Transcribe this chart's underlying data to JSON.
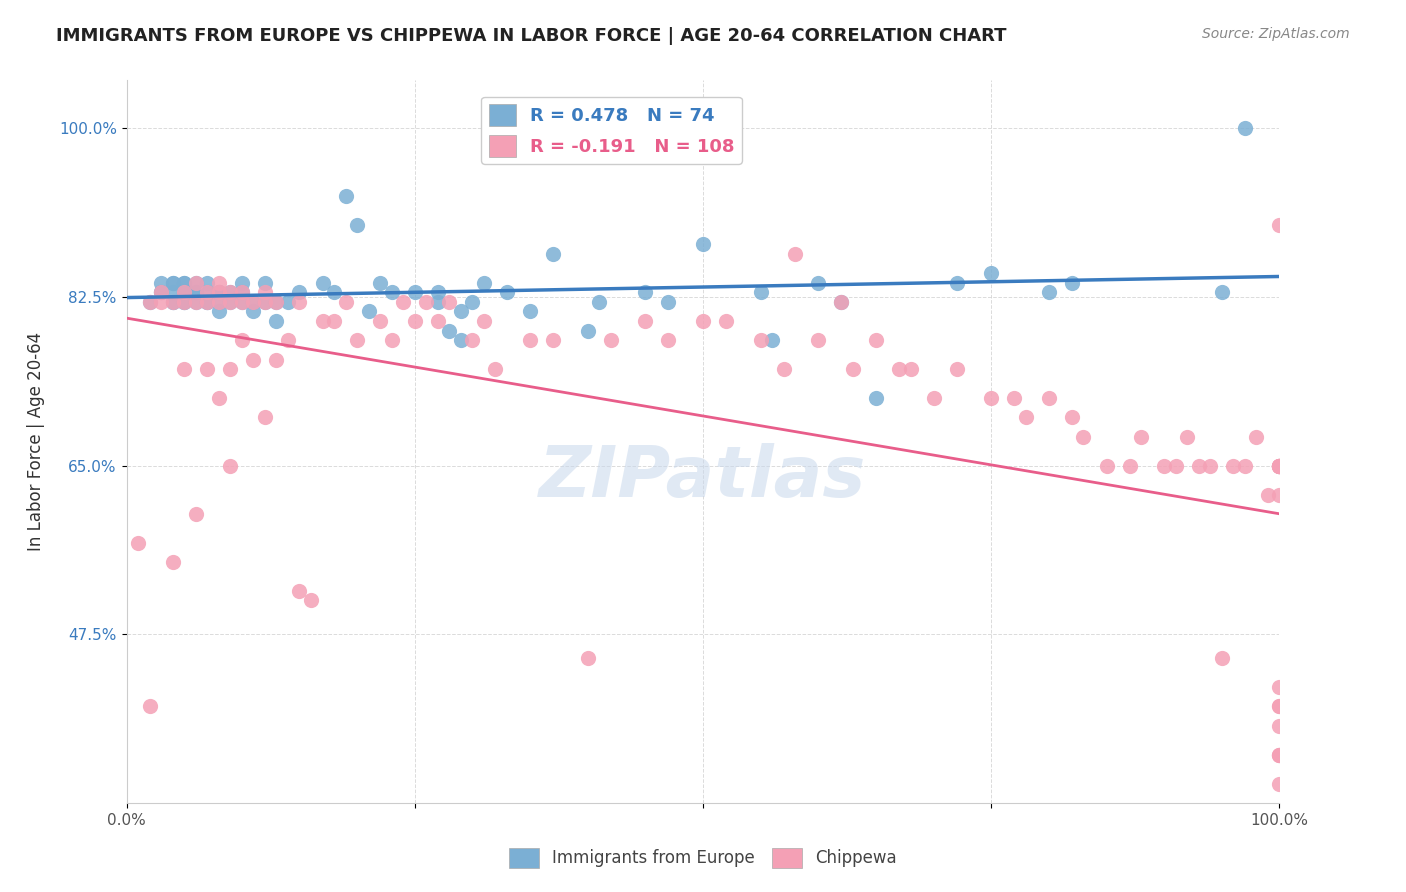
{
  "title": "IMMIGRANTS FROM EUROPE VS CHIPPEWA IN LABOR FORCE | AGE 20-64 CORRELATION CHART",
  "source": "Source: ZipAtlas.com",
  "xlabel_bottom": "",
  "ylabel": "In Labor Force | Age 20-64",
  "xlim": [
    0.0,
    1.0
  ],
  "ylim": [
    0.3,
    1.05
  ],
  "xticks": [
    0.0,
    0.25,
    0.5,
    0.75,
    1.0
  ],
  "xticklabels": [
    "0.0%",
    "",
    "",
    "",
    "100.0%"
  ],
  "ytick_positions": [
    0.475,
    0.65,
    0.825,
    1.0
  ],
  "ytick_labels": [
    "47.5%",
    "65.0%",
    "82.5%",
    "100.0%"
  ],
  "blue_R": 0.478,
  "blue_N": 74,
  "pink_R": -0.191,
  "pink_N": 108,
  "blue_color": "#7bafd4",
  "pink_color": "#f4a0b5",
  "blue_line_color": "#3a7bbf",
  "pink_line_color": "#e85d8a",
  "legend_R_color": "#3a7bbf",
  "legend_label1": "Immigrants from Europe",
  "legend_label2": "Chippewa",
  "watermark": "ZIPatlas",
  "blue_scatter_x": [
    0.02,
    0.03,
    0.03,
    0.03,
    0.04,
    0.04,
    0.04,
    0.04,
    0.04,
    0.05,
    0.05,
    0.05,
    0.05,
    0.05,
    0.05,
    0.06,
    0.06,
    0.06,
    0.06,
    0.07,
    0.07,
    0.07,
    0.07,
    0.08,
    0.08,
    0.08,
    0.08,
    0.09,
    0.09,
    0.1,
    0.1,
    0.1,
    0.11,
    0.11,
    0.12,
    0.12,
    0.13,
    0.13,
    0.14,
    0.15,
    0.17,
    0.18,
    0.19,
    0.2,
    0.21,
    0.22,
    0.23,
    0.25,
    0.27,
    0.27,
    0.28,
    0.29,
    0.29,
    0.3,
    0.31,
    0.33,
    0.35,
    0.37,
    0.4,
    0.41,
    0.45,
    0.47,
    0.5,
    0.55,
    0.56,
    0.6,
    0.62,
    0.65,
    0.72,
    0.75,
    0.8,
    0.82,
    0.95,
    0.97
  ],
  "blue_scatter_y": [
    0.82,
    0.83,
    0.83,
    0.84,
    0.82,
    0.82,
    0.83,
    0.84,
    0.84,
    0.82,
    0.82,
    0.83,
    0.83,
    0.84,
    0.84,
    0.82,
    0.83,
    0.83,
    0.84,
    0.82,
    0.82,
    0.83,
    0.84,
    0.81,
    0.82,
    0.83,
    0.83,
    0.82,
    0.83,
    0.82,
    0.83,
    0.84,
    0.81,
    0.82,
    0.82,
    0.84,
    0.8,
    0.82,
    0.82,
    0.83,
    0.84,
    0.83,
    0.93,
    0.9,
    0.81,
    0.84,
    0.83,
    0.83,
    0.83,
    0.82,
    0.79,
    0.81,
    0.78,
    0.82,
    0.84,
    0.83,
    0.81,
    0.87,
    0.79,
    0.82,
    0.83,
    0.82,
    0.88,
    0.83,
    0.78,
    0.84,
    0.82,
    0.72,
    0.84,
    0.85,
    0.83,
    0.84,
    0.83,
    1.0
  ],
  "pink_scatter_x": [
    0.01,
    0.02,
    0.02,
    0.03,
    0.03,
    0.04,
    0.04,
    0.05,
    0.05,
    0.05,
    0.06,
    0.06,
    0.06,
    0.07,
    0.07,
    0.07,
    0.08,
    0.08,
    0.08,
    0.08,
    0.09,
    0.09,
    0.09,
    0.09,
    0.1,
    0.1,
    0.1,
    0.11,
    0.11,
    0.12,
    0.12,
    0.12,
    0.13,
    0.13,
    0.14,
    0.15,
    0.15,
    0.16,
    0.17,
    0.18,
    0.19,
    0.2,
    0.22,
    0.23,
    0.24,
    0.25,
    0.26,
    0.27,
    0.28,
    0.3,
    0.31,
    0.32,
    0.35,
    0.37,
    0.4,
    0.42,
    0.45,
    0.47,
    0.5,
    0.52,
    0.55,
    0.57,
    0.58,
    0.6,
    0.62,
    0.63,
    0.65,
    0.67,
    0.68,
    0.7,
    0.72,
    0.75,
    0.77,
    0.78,
    0.8,
    0.82,
    0.83,
    0.85,
    0.87,
    0.88,
    0.9,
    0.91,
    0.92,
    0.93,
    0.94,
    0.95,
    0.96,
    0.97,
    0.98,
    0.99,
    1.0,
    1.0,
    1.0,
    1.0,
    1.0,
    1.0,
    1.0,
    1.0,
    1.0,
    1.0,
    1.0,
    1.0,
    1.0,
    1.0,
    1.0,
    1.0,
    1.0,
    1.0
  ],
  "pink_scatter_y": [
    0.57,
    0.82,
    0.4,
    0.83,
    0.82,
    0.82,
    0.55,
    0.83,
    0.82,
    0.75,
    0.84,
    0.82,
    0.6,
    0.83,
    0.82,
    0.75,
    0.84,
    0.83,
    0.82,
    0.72,
    0.83,
    0.82,
    0.75,
    0.65,
    0.83,
    0.82,
    0.78,
    0.82,
    0.76,
    0.83,
    0.82,
    0.7,
    0.82,
    0.76,
    0.78,
    0.82,
    0.52,
    0.51,
    0.8,
    0.8,
    0.82,
    0.78,
    0.8,
    0.78,
    0.82,
    0.8,
    0.82,
    0.8,
    0.82,
    0.78,
    0.8,
    0.75,
    0.78,
    0.78,
    0.45,
    0.78,
    0.8,
    0.78,
    0.8,
    0.8,
    0.78,
    0.75,
    0.87,
    0.78,
    0.82,
    0.75,
    0.78,
    0.75,
    0.75,
    0.72,
    0.75,
    0.72,
    0.72,
    0.7,
    0.72,
    0.7,
    0.68,
    0.65,
    0.65,
    0.68,
    0.65,
    0.65,
    0.68,
    0.65,
    0.65,
    0.45,
    0.65,
    0.65,
    0.68,
    0.62,
    0.62,
    0.65,
    0.65,
    0.65,
    0.65,
    0.65,
    0.65,
    0.65,
    0.9,
    0.28,
    0.35,
    0.4,
    0.42,
    0.4,
    0.38,
    0.35,
    0.32,
    0.35
  ]
}
